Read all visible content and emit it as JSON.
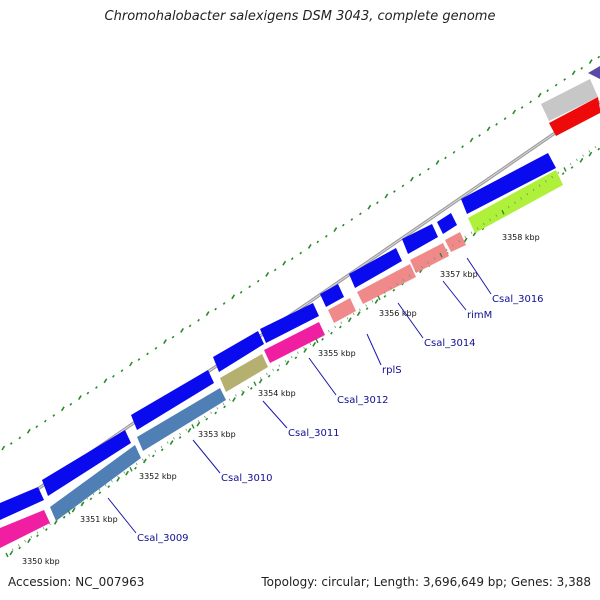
{
  "title": "Chromohalobacter salexigens DSM 3043, complete genome",
  "accession": "Accession: NC_007963",
  "stats": "Topology: circular; Length: 3,696,649 bp; Genes: 3,388",
  "colors": {
    "forward_cds": "#0a0aee",
    "blue_steel": "#4f7fb5",
    "pink": "#f01ea0",
    "olive": "#b5b070",
    "salmon": "#f08a8a",
    "lime": "#aef03a",
    "gray_gene": "#c7c7c7",
    "red_gene": "#ee0a0a",
    "backbone": "#8a8a8a",
    "gc_tick": "#2a8a2a",
    "label": "#101090"
  },
  "tick_labels": [
    "3350 kbp",
    "3351 kbp",
    "3352 kbp",
    "3353 kbp",
    "3354 kbp",
    "3355 kbp",
    "3356 kbp",
    "3357 kbp",
    "3358 kbp"
  ],
  "gene_labels": [
    "Csal_3009",
    "Csal_3010",
    "Csal_3011",
    "Csal_3012",
    "rplS",
    "Csal_3014",
    "rimM",
    "Csal_3016"
  ]
}
